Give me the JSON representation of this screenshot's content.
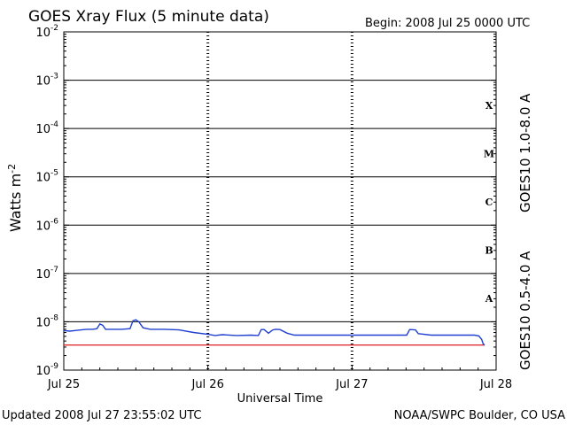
{
  "header": {
    "title": "GOES Xray Flux (5 minute data)",
    "begin": "Begin:  2008 Jul 25 0000 UTC"
  },
  "footer": {
    "updated": "Updated 2008 Jul 27 23:55:02 UTC",
    "source": "NOAA/SWPC Boulder, CO USA"
  },
  "chart_data": {
    "type": "line",
    "ylabel_base": "Watts m",
    "ylabel_exp": "-2",
    "xlabel": "Universal Time",
    "x_tick_labels": [
      "Jul 25",
      "Jul 26",
      "Jul 27",
      "Jul 28"
    ],
    "x_unit": "days since 2008 Jul 25 0000 UTC",
    "xlim": [
      0,
      3
    ],
    "ylim": [
      1e-09,
      0.01
    ],
    "y_scale": "log",
    "y_tick_exponents": [
      -2,
      -3,
      -4,
      -5,
      -6,
      -7,
      -8,
      -9
    ],
    "y_tick_base": "10",
    "grid": true,
    "flare_classes": [
      {
        "label": "X",
        "min": 0.0001
      },
      {
        "label": "M",
        "min": 1e-05
      },
      {
        "label": "C",
        "min": 1e-06
      },
      {
        "label": "B",
        "min": 1e-07
      },
      {
        "label": "A",
        "min": 1e-08
      }
    ],
    "series": [
      {
        "name": "GOES10 1.0-8.0 A",
        "color": "#e03030",
        "x": [
          0,
          2.92
        ],
        "y": [
          3.3e-09,
          3.3e-09
        ]
      },
      {
        "name": "GOES10 0.5-4.0 A",
        "color": "#2040d0",
        "x": [
          0,
          0.04,
          0.08,
          0.12,
          0.16,
          0.2,
          0.23,
          0.25,
          0.27,
          0.29,
          0.31,
          0.33,
          0.4,
          0.46,
          0.48,
          0.5,
          0.52,
          0.55,
          0.6,
          0.7,
          0.8,
          0.9,
          1.0,
          1.05,
          1.1,
          1.2,
          1.3,
          1.35,
          1.37,
          1.39,
          1.42,
          1.45,
          1.47,
          1.5,
          1.55,
          1.6,
          1.65,
          1.7,
          1.8,
          2.0,
          2.2,
          2.38,
          2.4,
          2.44,
          2.46,
          2.48,
          2.55,
          2.7,
          2.85,
          2.88,
          2.9,
          2.91,
          2.92
        ],
        "y": [
          6.6e-09,
          6.4e-09,
          6.6e-09,
          6.8e-09,
          7e-09,
          7e-09,
          7.2e-09,
          9e-09,
          8.5e-09,
          7e-09,
          7e-09,
          7e-09,
          7e-09,
          7.2e-09,
          1.05e-08,
          1.1e-08,
          1e-08,
          7.5e-09,
          7e-09,
          7e-09,
          6.8e-09,
          6e-09,
          5.5e-09,
          5.2e-09,
          5.4e-09,
          5.2e-09,
          5.3e-09,
          5.2e-09,
          6.9e-09,
          6.9e-09,
          5.8e-09,
          6.8e-09,
          7e-09,
          6.9e-09,
          5.8e-09,
          5.3e-09,
          5.3e-09,
          5.3e-09,
          5.3e-09,
          5.3e-09,
          5.3e-09,
          5.3e-09,
          6.9e-09,
          6.8e-09,
          5.7e-09,
          5.6e-09,
          5.3e-09,
          5.3e-09,
          5.3e-09,
          5.1e-09,
          4.3e-09,
          3.5e-09,
          3.3e-09
        ]
      }
    ]
  }
}
